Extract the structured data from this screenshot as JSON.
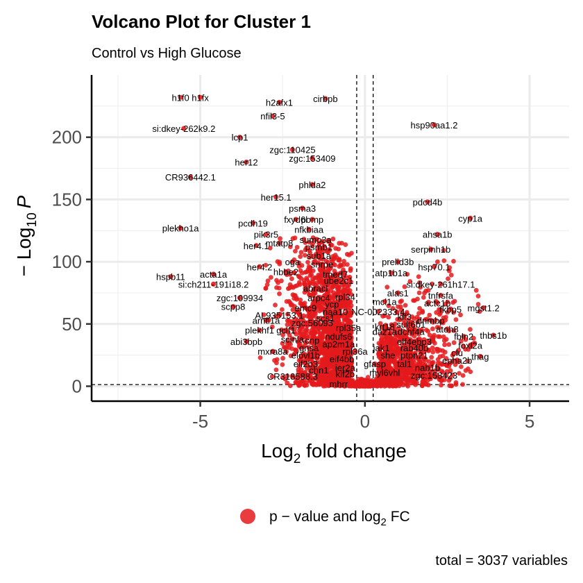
{
  "chart_data": {
    "type": "scatter",
    "title": "Volcano Plot for Cluster 1",
    "subtitle": "Control vs High Glucose",
    "xlabel": {
      "prefix": "Log",
      "sub": "2",
      "suffix": " fold change"
    },
    "ylabel": {
      "prefix": "− Log",
      "sub": "10",
      "suffix": "P"
    },
    "xlim": [
      -8.3,
      6.2
    ],
    "ylim": [
      -12,
      250
    ],
    "x_ticks": [
      -5,
      0,
      5
    ],
    "y_ticks": [
      0,
      50,
      100,
      150,
      200
    ],
    "x_tick_labels": [
      "-5",
      "0",
      "5"
    ],
    "y_tick_labels": [
      "0",
      "50",
      "100",
      "150",
      "200"
    ],
    "fc_cutoff": 0.25,
    "p_cutoff_y": 1.3,
    "grid": true,
    "point_color": "#e41a1c",
    "legend": {
      "position": "bottom",
      "label": {
        "prefix": "p − value and log",
        "sub": "2",
        "suffix": " FC"
      }
    },
    "caption": "total = 3037 variables",
    "labeled_points": [
      {
        "label": "h1f0",
        "x": -5.6,
        "y": 232
      },
      {
        "label": "h1fx",
        "x": -5.0,
        "y": 232
      },
      {
        "label": "h2afx1",
        "x": -2.6,
        "y": 228
      },
      {
        "label": "cirbpb",
        "x": -1.2,
        "y": 231
      },
      {
        "label": "nfil3-5",
        "x": -2.8,
        "y": 217
      },
      {
        "label": "hsp90aa1.2",
        "x": 2.1,
        "y": 210
      },
      {
        "label": "si:dkey-262k9.2",
        "x": -5.5,
        "y": 207
      },
      {
        "label": "lcp1",
        "x": -3.8,
        "y": 200
      },
      {
        "label": "zgc:110425",
        "x": -2.2,
        "y": 190
      },
      {
        "label": "zgc:153409",
        "x": -1.6,
        "y": 183
      },
      {
        "label": "her12",
        "x": -3.6,
        "y": 180
      },
      {
        "label": "CR936442.1",
        "x": -5.3,
        "y": 168
      },
      {
        "label": "phlda2",
        "x": -1.6,
        "y": 162
      },
      {
        "label": "her15.1",
        "x": -2.7,
        "y": 152
      },
      {
        "label": "pdcd4b",
        "x": 1.9,
        "y": 148
      },
      {
        "label": "psma3",
        "x": -1.9,
        "y": 143
      },
      {
        "label": "cyp1a",
        "x": 3.2,
        "y": 135
      },
      {
        "label": "fxyd6l",
        "x": -2.1,
        "y": 134
      },
      {
        "label": "pcdh19",
        "x": -3.4,
        "y": 131
      },
      {
        "label": "pomp",
        "x": -1.6,
        "y": 134
      },
      {
        "label": "nfkbiaa",
        "x": -1.7,
        "y": 126
      },
      {
        "label": "plekho1a",
        "x": -5.6,
        "y": 127
      },
      {
        "label": "pik3r5",
        "x": -3.0,
        "y": 122
      },
      {
        "label": "ahsa1b",
        "x": 2.2,
        "y": 122
      },
      {
        "label": "sumo3a",
        "x": -1.5,
        "y": 118
      },
      {
        "label": "mtatp8",
        "x": -2.6,
        "y": 115
      },
      {
        "label": "her4.1",
        "x": -3.3,
        "y": 113
      },
      {
        "label": "psmb1",
        "x": -1.4,
        "y": 112
      },
      {
        "label": "serpinh1b",
        "x": 2.0,
        "y": 110
      },
      {
        "label": "sub1a",
        "x": -1.4,
        "y": 105
      },
      {
        "label": "prelid3b",
        "x": 1.0,
        "y": 100
      },
      {
        "label": "oga",
        "x": -2.2,
        "y": 100
      },
      {
        "label": "snrpe",
        "x": -1.3,
        "y": 98
      },
      {
        "label": "her4.2",
        "x": -3.2,
        "y": 96
      },
      {
        "label": "hsp70.1",
        "x": 2.1,
        "y": 96
      },
      {
        "label": "hbbe2",
        "x": -2.4,
        "y": 92
      },
      {
        "label": "tmed7",
        "x": -0.9,
        "y": 90
      },
      {
        "label": "atp1b1a",
        "x": 0.8,
        "y": 91
      },
      {
        "label": "acta1a",
        "x": -4.6,
        "y": 90
      },
      {
        "label": "hspb11",
        "x": -5.9,
        "y": 88
      },
      {
        "label": "ube2c1",
        "x": -0.8,
        "y": 85
      },
      {
        "label": "si:dkey-261h17.1",
        "x": 2.3,
        "y": 82
      },
      {
        "label": "si:ch211-191i18.2",
        "x": -4.6,
        "y": 82
      },
      {
        "label": "abracl",
        "x": -1.5,
        "y": 79
      },
      {
        "label": "alas1",
        "x": 1.0,
        "y": 75
      },
      {
        "label": "tnfrsfa",
        "x": 2.3,
        "y": 73
      },
      {
        "label": "rpl34",
        "x": -0.6,
        "y": 72
      },
      {
        "label": "zgc:109934",
        "x": -3.8,
        "y": 71
      },
      {
        "label": "arpc4",
        "x": -1.4,
        "y": 71
      },
      {
        "label": "mcl1a",
        "x": 0.6,
        "y": 68
      },
      {
        "label": "actc1b",
        "x": 2.2,
        "y": 67
      },
      {
        "label": "ycp",
        "x": -1.0,
        "y": 66
      },
      {
        "label": "scpp8",
        "x": -4.0,
        "y": 64
      },
      {
        "label": "mgst1.2",
        "x": 3.6,
        "y": 63
      },
      {
        "label": "emc9",
        "x": -1.8,
        "y": 63
      },
      {
        "label": "fkbp5",
        "x": 2.6,
        "y": 62
      },
      {
        "label": "NC-002333.4",
        "x": 0.4,
        "y": 60
      },
      {
        "label": "naa10",
        "x": -0.9,
        "y": 60
      },
      {
        "label": "AL935153.1",
        "x": -2.6,
        "y": 57
      },
      {
        "label": "klf3",
        "x": 1.2,
        "y": 56
      },
      {
        "label": "scs1",
        "x": -1.2,
        "y": 55
      },
      {
        "label": "dnmbp",
        "x": 2.0,
        "y": 53
      },
      {
        "label": "arntl1a",
        "x": -3.0,
        "y": 53
      },
      {
        "label": "zgc:56095",
        "x": -1.6,
        "y": 51
      },
      {
        "label": "sult6b1",
        "x": 1.4,
        "y": 50
      },
      {
        "label": "krt18",
        "x": 0.6,
        "y": 48
      },
      {
        "label": "atoh8",
        "x": 2.5,
        "y": 46
      },
      {
        "label": "rpl35a",
        "x": -0.5,
        "y": 47
      },
      {
        "label": "plekhf1",
        "x": -3.2,
        "y": 45
      },
      {
        "label": "gclf1",
        "x": -2.4,
        "y": 45
      },
      {
        "label": "daz1a",
        "x": 0.6,
        "y": 44
      },
      {
        "label": "dchf4a",
        "x": 1.4,
        "y": 44
      },
      {
        "label": "thbs1b",
        "x": 3.9,
        "y": 41
      },
      {
        "label": "fbln2",
        "x": 3.0,
        "y": 40
      },
      {
        "label": "ndufs6",
        "x": -0.8,
        "y": 40
      },
      {
        "label": "scinla",
        "x": -2.2,
        "y": 38
      },
      {
        "label": "cnp",
        "x": -1.6,
        "y": 37
      },
      {
        "label": "abi3bpb",
        "x": -3.6,
        "y": 36
      },
      {
        "label": "elf4ebp3",
        "x": 1.5,
        "y": 36
      },
      {
        "label": "ap2m1a",
        "x": -0.8,
        "y": 34
      },
      {
        "label": "foxl2a",
        "x": 3.2,
        "y": 33
      },
      {
        "label": "jak1",
        "x": 0.5,
        "y": 31
      },
      {
        "label": "rab40b",
        "x": 1.5,
        "y": 31
      },
      {
        "label": "gnsa",
        "x": -1.7,
        "y": 31
      },
      {
        "label": "rpl36a",
        "x": -0.3,
        "y": 28
      },
      {
        "label": "mxra8a",
        "x": -2.8,
        "y": 28
      },
      {
        "label": "clu",
        "x": 2.8,
        "y": 27
      },
      {
        "label": "she",
        "x": 0.7,
        "y": 25
      },
      {
        "label": "ptpn21",
        "x": 1.5,
        "y": 25
      },
      {
        "label": "thag",
        "x": 3.5,
        "y": 24
      },
      {
        "label": "elovl1b",
        "x": -1.8,
        "y": 25
      },
      {
        "label": "eif4bb",
        "x": -0.7,
        "y": 22
      },
      {
        "label": "epha2b",
        "x": 2.8,
        "y": 21
      },
      {
        "label": "eif2b3",
        "x": -1.8,
        "y": 18
      },
      {
        "label": "gfasp",
        "x": 0.3,
        "y": 18
      },
      {
        "label": "tal1",
        "x": 1.2,
        "y": 18
      },
      {
        "label": "nab1b",
        "x": 1.9,
        "y": 15
      },
      {
        "label": "ier2a",
        "x": -0.6,
        "y": 15
      },
      {
        "label": "chn1",
        "x": -1.4,
        "y": 13
      },
      {
        "label": "myl6vhl",
        "x": 0.6,
        "y": 11
      },
      {
        "label": "klf2b",
        "x": -0.6,
        "y": 10
      },
      {
        "label": "CR318588.3",
        "x": -2.2,
        "y": 8
      },
      {
        "label": "zgc:158423",
        "x": 2.1,
        "y": 9
      },
      {
        "label": "mhrr",
        "x": -0.8,
        "y": 2
      }
    ],
    "n_background_points": 2930
  }
}
